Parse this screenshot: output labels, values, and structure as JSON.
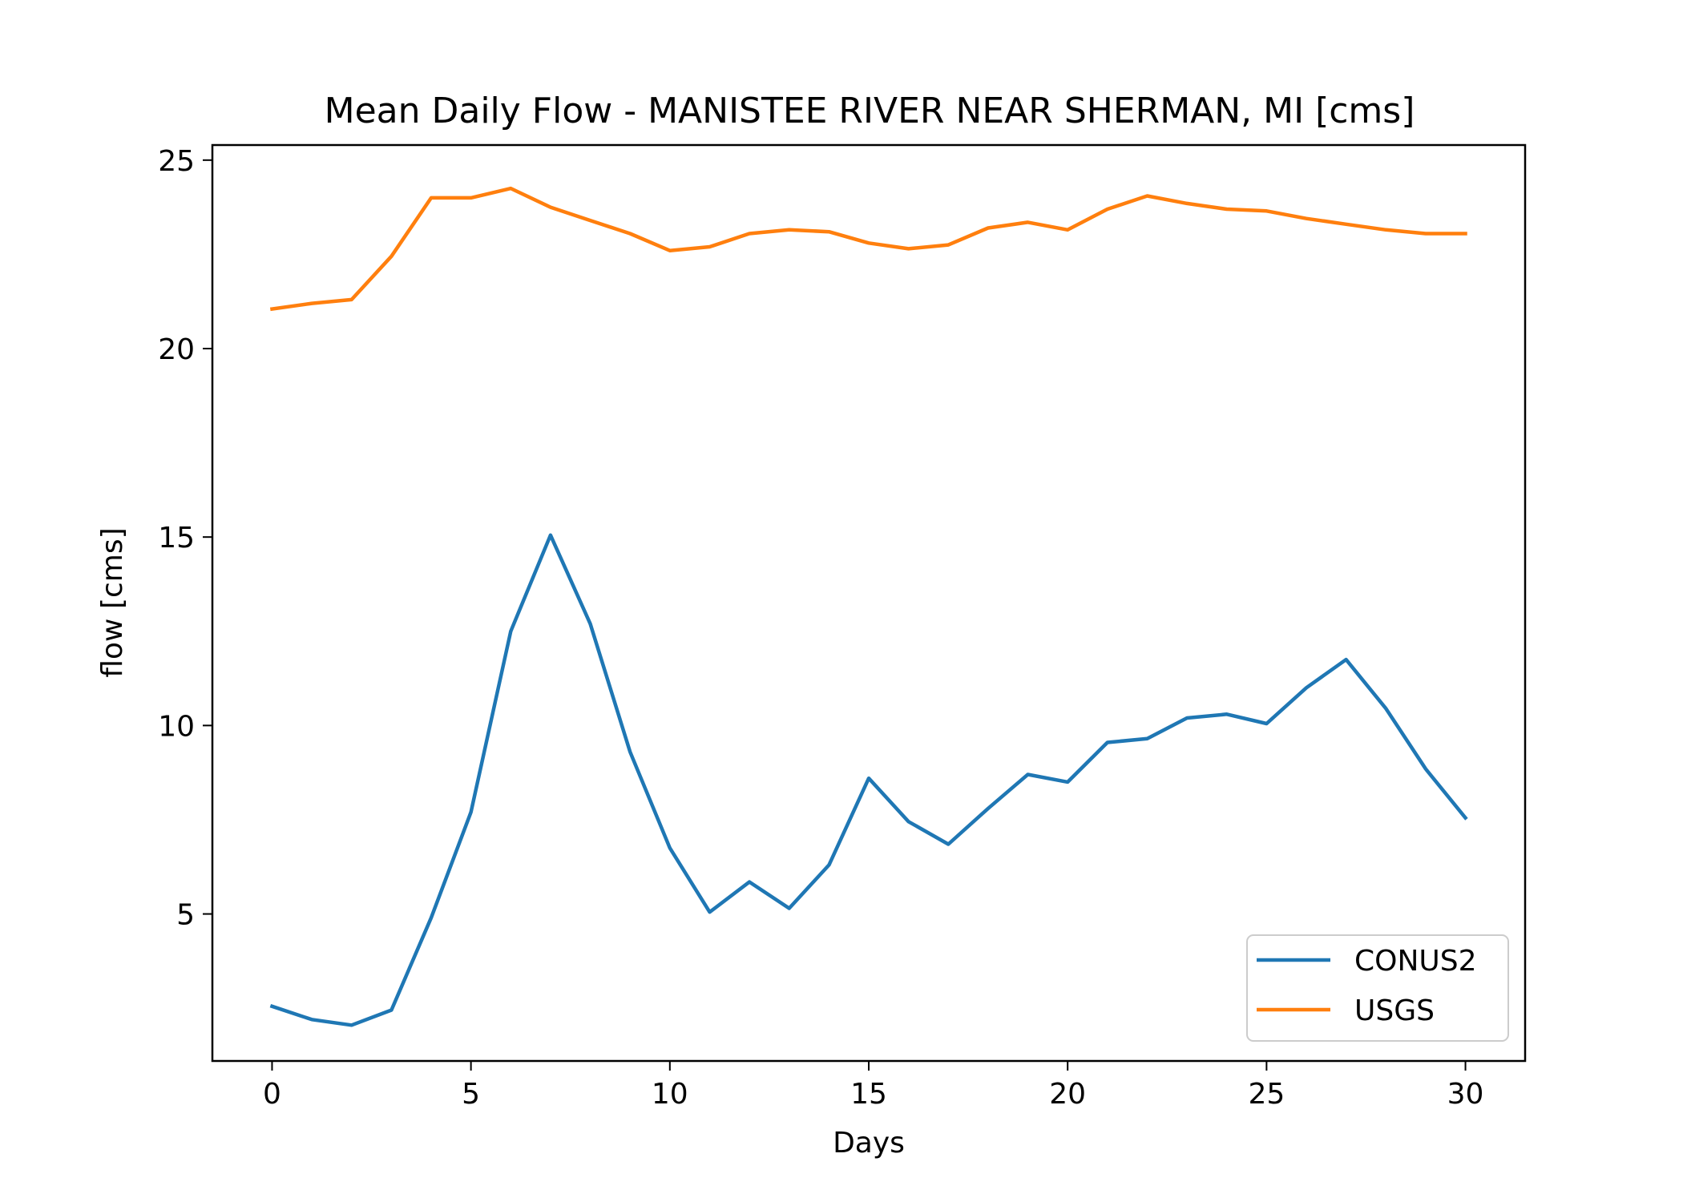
{
  "chart_data": {
    "type": "line",
    "title": "Mean Daily Flow - MANISTEE RIVER NEAR SHERMAN, MI [cms]",
    "xlabel": "Days",
    "ylabel": "flow [cms]",
    "xlim": [
      -1.5,
      31.5
    ],
    "ylim": [
      1.1,
      25.4
    ],
    "xticks": [
      0,
      5,
      10,
      15,
      20,
      25,
      30
    ],
    "yticks": [
      5,
      10,
      15,
      20,
      25
    ],
    "grid": false,
    "legend_position": "lower-right",
    "x": [
      0,
      1,
      2,
      3,
      4,
      5,
      6,
      7,
      8,
      9,
      10,
      11,
      12,
      13,
      14,
      15,
      16,
      17,
      18,
      19,
      20,
      21,
      22,
      23,
      24,
      25,
      26,
      27,
      28,
      29,
      30
    ],
    "series": [
      {
        "name": "CONUS2",
        "color": "#1f77b4",
        "values": [
          2.55,
          2.2,
          2.05,
          2.45,
          4.9,
          7.7,
          12.5,
          15.05,
          12.7,
          9.3,
          6.75,
          5.05,
          5.85,
          5.15,
          6.3,
          8.6,
          7.45,
          6.85,
          7.8,
          8.7,
          8.5,
          9.55,
          9.65,
          10.2,
          10.3,
          10.05,
          11.0,
          11.75,
          10.45,
          8.85,
          7.55
        ]
      },
      {
        "name": "USGS",
        "color": "#ff7f0e",
        "values": [
          21.05,
          21.2,
          21.3,
          22.45,
          24.0,
          24.0,
          24.25,
          23.75,
          23.4,
          23.05,
          22.6,
          22.7,
          23.05,
          23.15,
          23.1,
          22.8,
          22.65,
          22.75,
          23.2,
          23.35,
          23.15,
          23.7,
          24.05,
          23.85,
          23.7,
          23.65,
          23.45,
          23.3,
          23.15,
          23.05,
          23.05
        ]
      }
    ]
  }
}
